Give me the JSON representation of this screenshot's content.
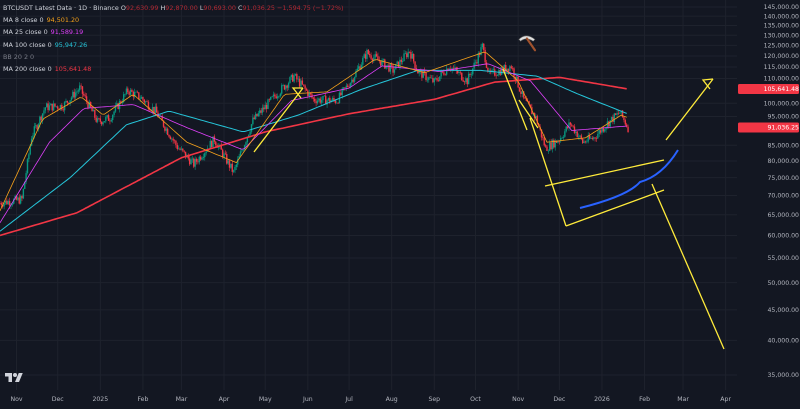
{
  "header": {
    "symbol_line": "BTCUSDT Latest Data · 1D · Binance",
    "ohlc": [
      {
        "k": "O",
        "v": "92,630.99"
      },
      {
        "k": "H",
        "v": "92,870.00"
      },
      {
        "k": "L",
        "v": "90,693.00"
      },
      {
        "k": "C",
        "v": "91,036.25"
      },
      {
        "k": "",
        "v": "−1,594.75 (−1.72%)"
      }
    ]
  },
  "indicators": [
    {
      "label": "MA 8 close 0",
      "value": "94,501.20",
      "color": "#f7a21b"
    },
    {
      "label": "MA 25 close 0",
      "value": "91,589.19",
      "color": "#e040fb"
    },
    {
      "label": "MA 100 close 0",
      "value": "95,947.26",
      "color": "#26c6da"
    },
    {
      "label": "BB 20 2 0",
      "value": "",
      "color": "#787b86"
    },
    {
      "label": "MA 200 close 0",
      "value": "105,641.48",
      "color": "#f23645"
    }
  ],
  "price_axis": {
    "ticks": [
      "145,000.00",
      "140,000.00",
      "135,000.00",
      "130,000.00",
      "125,000.00",
      "120,000.00",
      "115,000.00",
      "110,000.00",
      "100,000.00",
      "95,000.00",
      "85,000.00",
      "80,000.00",
      "75,000.00",
      "70,000.00",
      "65,000.00",
      "60,000.00",
      "55,000.00",
      "50,000.00",
      "45,000.00",
      "40,000.00",
      "35,000.00"
    ],
    "badges": [
      {
        "text": "105,641.48",
        "color": "#f23645"
      },
      {
        "text": "91,036.25",
        "color": "#f23645"
      }
    ]
  },
  "time_axis": {
    "labels": [
      "Nov",
      "Dec",
      "2025",
      "Feb",
      "Mar",
      "Apr",
      "May",
      "Jun",
      "Jul",
      "Aug",
      "Sep",
      "Oct",
      "Nov",
      "Dec",
      "2026",
      "Feb",
      "Mar",
      "Apr"
    ]
  },
  "colors": {
    "background": "#131722",
    "grid": "#1e222d",
    "candle_up": "#089981",
    "candle_down": "#f23645",
    "ma8": "#f7a21b",
    "ma25": "#e040fb",
    "ma100": "#26c6da",
    "ma200": "#f23645",
    "annotation_yellow": "#ffeb3b",
    "annotation_blue": "#2962ff"
  },
  "icons": {
    "pickaxe": "pickaxe-icon",
    "logo": "tradingview-logo"
  },
  "chart_data": {
    "type": "candlestick",
    "title": "BTCUSDT Latest Data · 1D · Binance",
    "price_scale": "log",
    "ylim": [
      33000,
      148000
    ],
    "x_range": [
      "2024-10-20",
      "2026-04-26"
    ],
    "last": {
      "open": 92630.99,
      "high": 92870.0,
      "low": 90693.0,
      "close": 91036.25,
      "change": -1594.75,
      "change_pct": -1.72
    },
    "price_path": [
      [
        "2024-10-20",
        68000
      ],
      [
        "2024-11-05",
        69000
      ],
      [
        "2024-11-12",
        88000
      ],
      [
        "2024-11-22",
        98500
      ],
      [
        "2024-12-05",
        99000
      ],
      [
        "2024-12-17",
        106000
      ],
      [
        "2024-12-30",
        93000
      ],
      [
        "2025-01-08",
        94500
      ],
      [
        "2025-01-21",
        105000
      ],
      [
        "2025-01-31",
        102000
      ],
      [
        "2025-02-10",
        97000
      ],
      [
        "2025-02-26",
        84500
      ],
      [
        "2025-03-10",
        79000
      ],
      [
        "2025-03-25",
        87000
      ],
      [
        "2025-04-08",
        76500
      ],
      [
        "2025-04-22",
        93500
      ],
      [
        "2025-05-10",
        104000
      ],
      [
        "2025-05-22",
        111000
      ],
      [
        "2025-06-05",
        101500
      ],
      [
        "2025-06-22",
        101000
      ],
      [
        "2025-07-03",
        109500
      ],
      [
        "2025-07-14",
        121500
      ],
      [
        "2025-07-25",
        117000
      ],
      [
        "2025-08-02",
        113500
      ],
      [
        "2025-08-14",
        122500
      ],
      [
        "2025-08-20",
        113000
      ],
      [
        "2025-09-01",
        108500
      ],
      [
        "2025-09-12",
        115500
      ],
      [
        "2025-09-25",
        109000
      ],
      [
        "2025-10-06",
        124500
      ],
      [
        "2025-10-11",
        111500
      ],
      [
        "2025-10-27",
        115500
      ],
      [
        "2025-11-05",
        101500
      ],
      [
        "2025-11-14",
        94500
      ],
      [
        "2025-11-21",
        84000
      ],
      [
        "2025-12-01",
        87000
      ],
      [
        "2025-12-09",
        92500
      ],
      [
        "2025-12-18",
        86000
      ],
      [
        "2025-12-26",
        87500
      ],
      [
        "2026-01-05",
        92500
      ],
      [
        "2026-01-14",
        96500
      ],
      [
        "2026-01-20",
        91036.25
      ]
    ],
    "moving_averages": {
      "ma200": [
        [
          "2024-10-20",
          60000
        ],
        [
          "2024-12-15",
          65500
        ],
        [
          "2025-03-01",
          81000
        ],
        [
          "2025-05-01",
          89500
        ],
        [
          "2025-07-01",
          96000
        ],
        [
          "2025-09-01",
          101500
        ],
        [
          "2025-10-15",
          108500
        ],
        [
          "2025-12-01",
          110500
        ],
        [
          "2026-01-20",
          105641.48
        ]
      ],
      "ma100": [
        [
          "2024-10-20",
          61000
        ],
        [
          "2024-12-10",
          75000
        ],
        [
          "2025-01-20",
          92000
        ],
        [
          "2025-02-20",
          97000
        ],
        [
          "2025-04-15",
          89500
        ],
        [
          "2025-05-25",
          95500
        ],
        [
          "2025-07-10",
          105500
        ],
        [
          "2025-08-20",
          113500
        ],
        [
          "2025-10-05",
          113500
        ],
        [
          "2025-11-15",
          111000
        ],
        [
          "2025-12-15",
          103500
        ],
        [
          "2026-01-20",
          95947.26
        ]
      ],
      "ma25": [
        [
          "2024-10-20",
          63000
        ],
        [
          "2024-11-25",
          86000
        ],
        [
          "2024-12-20",
          98000
        ],
        [
          "2025-01-25",
          99500
        ],
        [
          "2025-03-05",
          91000
        ],
        [
          "2025-04-15",
          83500
        ],
        [
          "2025-05-20",
          101000
        ],
        [
          "2025-07-01",
          106000
        ],
        [
          "2025-07-25",
          115500
        ],
        [
          "2025-09-05",
          113000
        ],
        [
          "2025-10-10",
          116500
        ],
        [
          "2025-11-10",
          109000
        ],
        [
          "2025-12-10",
          90000
        ],
        [
          "2026-01-20",
          91589.19
        ]
      ],
      "ma8": [
        [
          "2024-10-20",
          66000
        ],
        [
          "2024-11-20",
          94000
        ],
        [
          "2024-12-18",
          102500
        ],
        [
          "2025-01-03",
          95500
        ],
        [
          "2025-01-25",
          103500
        ],
        [
          "2025-03-05",
          86000
        ],
        [
          "2025-04-10",
          79500
        ],
        [
          "2025-05-15",
          103500
        ],
        [
          "2025-06-15",
          104500
        ],
        [
          "2025-07-20",
          118500
        ],
        [
          "2025-08-25",
          112500
        ],
        [
          "2025-10-08",
          122000
        ],
        [
          "2025-11-01",
          109000
        ],
        [
          "2025-11-22",
          86000
        ],
        [
          "2025-12-20",
          87500
        ],
        [
          "2026-01-15",
          95500
        ],
        [
          "2026-01-20",
          94501.2
        ]
      ]
    }
  }
}
